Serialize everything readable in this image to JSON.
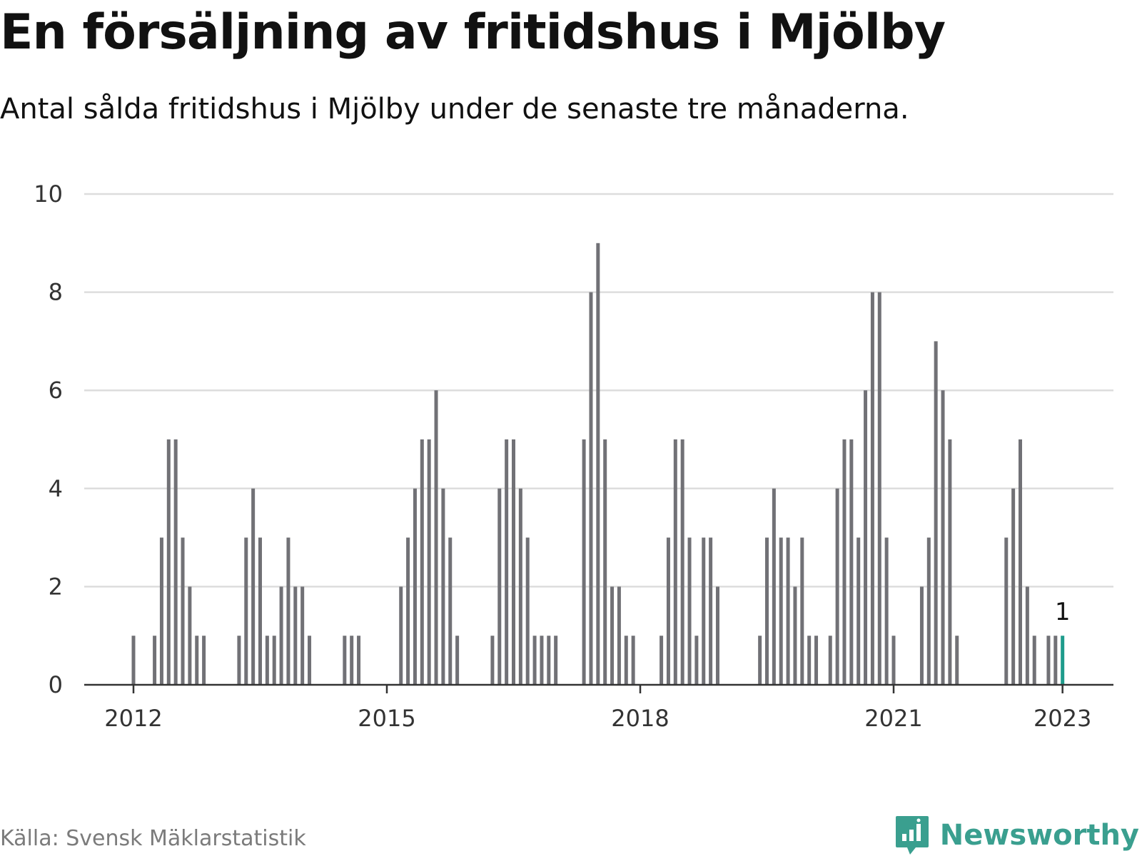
{
  "header": {
    "title": "En försäljning av fritidshus i Mjölby",
    "subtitle": "Antal sålda fritidshus i Mjölby under de senaste tre månaderna."
  },
  "footer": {
    "source": "Källa: Svensk Mäklarstatistik",
    "brand": "Newsworthy"
  },
  "colors": {
    "bar": "#717176",
    "highlight": "#1f9c8c",
    "grid": "#dddddd",
    "axis": "#333333",
    "brand": "#3a9f8f"
  },
  "chart_data": {
    "type": "bar",
    "title": "En försäljning av fritidshus i Mjölby",
    "subtitle": "Antal sålda fritidshus i Mjölby under de senaste tre månaderna.",
    "xlabel": "",
    "ylabel": "",
    "ylim": [
      0,
      10
    ],
    "yticks": [
      0,
      2,
      4,
      6,
      8,
      10
    ],
    "xticks": [
      {
        "label": "2012",
        "date": "2012-01"
      },
      {
        "label": "2015",
        "date": "2015-01"
      },
      {
        "label": "2018",
        "date": "2018-01"
      },
      {
        "label": "2021",
        "date": "2021-01"
      },
      {
        "label": "2023",
        "date": "2023-01"
      }
    ],
    "grid": true,
    "categories": [
      "2012-01",
      "2012-02",
      "2012-03",
      "2012-04",
      "2012-05",
      "2012-06",
      "2012-07",
      "2012-08",
      "2012-09",
      "2012-10",
      "2012-11",
      "2012-12",
      "2013-01",
      "2013-02",
      "2013-03",
      "2013-04",
      "2013-05",
      "2013-06",
      "2013-07",
      "2013-08",
      "2013-09",
      "2013-10",
      "2013-11",
      "2013-12",
      "2014-01",
      "2014-02",
      "2014-03",
      "2014-04",
      "2014-05",
      "2014-06",
      "2014-07",
      "2014-08",
      "2014-09",
      "2014-10",
      "2014-11",
      "2014-12",
      "2015-01",
      "2015-02",
      "2015-03",
      "2015-04",
      "2015-05",
      "2015-06",
      "2015-07",
      "2015-08",
      "2015-09",
      "2015-10",
      "2015-11",
      "2015-12",
      "2016-01",
      "2016-02",
      "2016-03",
      "2016-04",
      "2016-05",
      "2016-06",
      "2016-07",
      "2016-08",
      "2016-09",
      "2016-10",
      "2016-11",
      "2016-12",
      "2017-01",
      "2017-02",
      "2017-03",
      "2017-04",
      "2017-05",
      "2017-06",
      "2017-07",
      "2017-08",
      "2017-09",
      "2017-10",
      "2017-11",
      "2017-12",
      "2018-01",
      "2018-02",
      "2018-03",
      "2018-04",
      "2018-05",
      "2018-06",
      "2018-07",
      "2018-08",
      "2018-09",
      "2018-10",
      "2018-11",
      "2018-12",
      "2019-01",
      "2019-02",
      "2019-03",
      "2019-04",
      "2019-05",
      "2019-06",
      "2019-07",
      "2019-08",
      "2019-09",
      "2019-10",
      "2019-11",
      "2019-12",
      "2020-01",
      "2020-02",
      "2020-03",
      "2020-04",
      "2020-05",
      "2020-06",
      "2020-07",
      "2020-08",
      "2020-09",
      "2020-10",
      "2020-11",
      "2020-12",
      "2021-01",
      "2021-02",
      "2021-03",
      "2021-04",
      "2021-05",
      "2021-06",
      "2021-07",
      "2021-08",
      "2021-09",
      "2021-10",
      "2021-11",
      "2021-12",
      "2022-01",
      "2022-02",
      "2022-03",
      "2022-04",
      "2022-05",
      "2022-06",
      "2022-07",
      "2022-08",
      "2022-09",
      "2022-10",
      "2022-11",
      "2022-12",
      "2023-01"
    ],
    "values": [
      1,
      0,
      0,
      1,
      3,
      5,
      5,
      3,
      2,
      1,
      1,
      0,
      0,
      0,
      0,
      1,
      3,
      4,
      3,
      1,
      1,
      2,
      3,
      2,
      2,
      1,
      0,
      0,
      0,
      0,
      1,
      1,
      1,
      0,
      0,
      0,
      0,
      0,
      2,
      3,
      4,
      5,
      5,
      6,
      4,
      3,
      1,
      0,
      0,
      0,
      0,
      1,
      4,
      5,
      5,
      4,
      3,
      1,
      1,
      1,
      1,
      0,
      0,
      0,
      5,
      8,
      9,
      5,
      2,
      2,
      1,
      1,
      0,
      0,
      0,
      1,
      3,
      5,
      5,
      3,
      1,
      3,
      3,
      2,
      0,
      0,
      0,
      0,
      0,
      1,
      3,
      4,
      3,
      3,
      2,
      3,
      1,
      1,
      0,
      1,
      4,
      5,
      5,
      3,
      6,
      8,
      8,
      3,
      1,
      0,
      0,
      0,
      2,
      3,
      7,
      6,
      5,
      1,
      0,
      0,
      0,
      0,
      0,
      0,
      3,
      4,
      5,
      2,
      1,
      0,
      1,
      1,
      1
    ],
    "highlight": {
      "date": "2023-01",
      "value": 1,
      "label": "1"
    }
  }
}
